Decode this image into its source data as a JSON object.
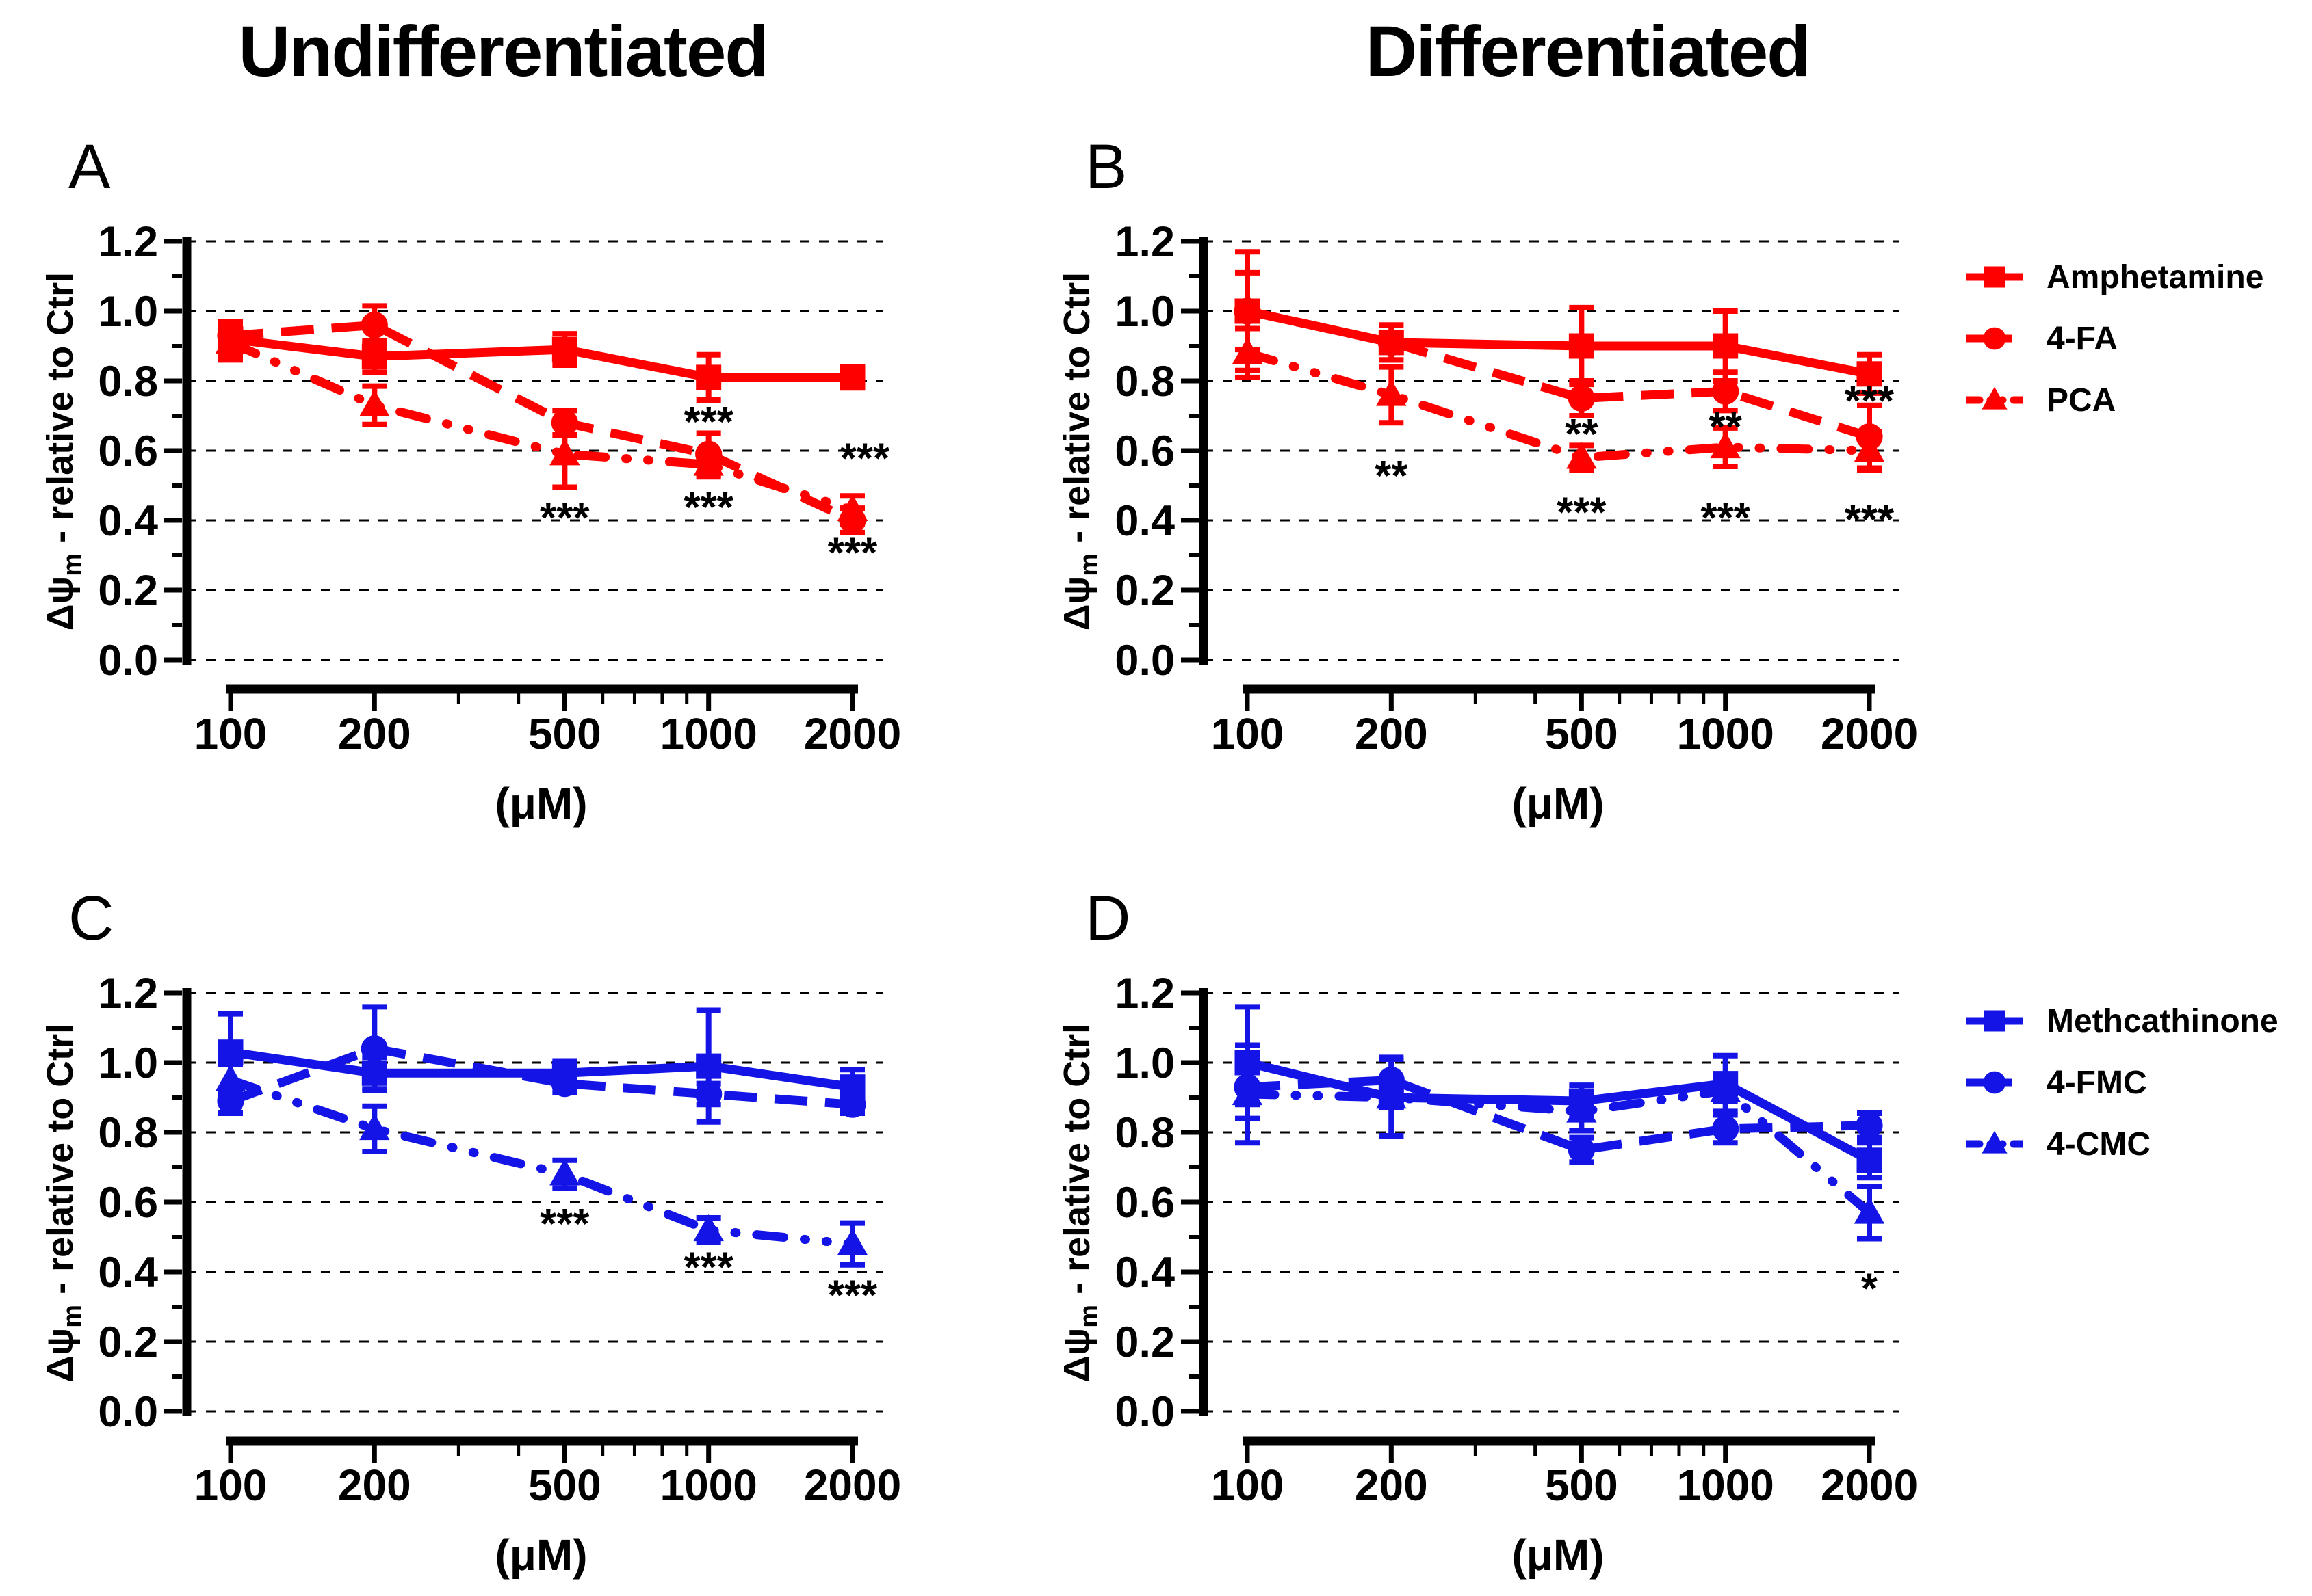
{
  "figure": {
    "column_titles": [
      "Undifferentiated",
      "Differentiated"
    ],
    "ylabel": {
      "prefix": "Δψ",
      "sub": "m",
      "suffix": " - relative to Ctrl"
    },
    "xlabel": "(μM)",
    "x_ticks": [
      "100",
      "200",
      "500",
      "1000",
      "2000"
    ],
    "x_minor_ticks": [
      300,
      400,
      600,
      700,
      800,
      900
    ],
    "y_tick_labels": [
      "0.0",
      "0.2",
      "0.4",
      "0.6",
      "0.8",
      "1.0",
      "1.2"
    ],
    "ylim": [
      0,
      1.2
    ],
    "xscale": "log",
    "grid": "dashed-horizontal",
    "colors": {
      "red": "#FF0000",
      "blue": "#1414E6",
      "axis": "#000000",
      "background": "#FFFFFF"
    }
  },
  "chart_data": [
    {
      "panel": "A",
      "type": "line",
      "column": "Undifferentiated",
      "color": "#FF0000",
      "x": [
        100,
        200,
        500,
        1000,
        2000
      ],
      "xscale": "log",
      "ylim": [
        0,
        1.2
      ],
      "ylabel": "Δψm - relative to Ctrl",
      "xlabel": "(μM)",
      "series": [
        {
          "name": "Amphetamine",
          "marker": "square",
          "linestyle": "solid",
          "values": [
            0.92,
            0.87,
            0.89,
            0.81,
            0.81
          ],
          "errors": [
            0.05,
            0.045,
            0.045,
            0.065,
            0.03
          ]
        },
        {
          "name": "4-FA",
          "marker": "circle",
          "linestyle": "dashed",
          "values": [
            0.93,
            0.96,
            0.68,
            0.59,
            0.4
          ],
          "errors": [
            0.04,
            0.055,
            0.035,
            0.06,
            0.035
          ]
        },
        {
          "name": "PCA",
          "marker": "triangle",
          "linestyle": "dashdotdot",
          "values": [
            0.91,
            0.73,
            0.59,
            0.56,
            0.43
          ],
          "errors": [
            0.05,
            0.055,
            0.095,
            0.035,
            0.04
          ]
        }
      ],
      "annotations": [
        {
          "x": 500,
          "y": 0.425,
          "text": "***"
        },
        {
          "x": 1000,
          "y": 0.7,
          "text": "***"
        },
        {
          "x": 1000,
          "y": 0.455,
          "text": "***"
        },
        {
          "x": 2000,
          "y": 0.595,
          "text": "***",
          "dx": 18
        },
        {
          "x": 2000,
          "y": 0.325,
          "text": "***"
        }
      ]
    },
    {
      "panel": "B",
      "type": "line",
      "column": "Differentiated",
      "color": "#FF0000",
      "x": [
        100,
        200,
        500,
        1000,
        2000
      ],
      "xscale": "log",
      "ylim": [
        0,
        1.2
      ],
      "ylabel": "Δψm - relative to Ctrl",
      "xlabel": "(μM)",
      "series": [
        {
          "name": "Amphetamine",
          "marker": "square",
          "linestyle": "solid",
          "values": [
            1.0,
            0.91,
            0.9,
            0.9,
            0.82
          ],
          "errors": [
            0.17,
            0.05,
            0.11,
            0.1,
            0.055
          ]
        },
        {
          "name": "4-FA",
          "marker": "circle",
          "linestyle": "dashed",
          "values": [
            1.0,
            0.91,
            0.75,
            0.77,
            0.64
          ],
          "errors": [
            0.11,
            0.05,
            0.05,
            0.055,
            0.09
          ]
        },
        {
          "name": "PCA",
          "marker": "triangle",
          "linestyle": "dashdotdot",
          "values": [
            0.88,
            0.76,
            0.58,
            0.61,
            0.6
          ],
          "errors": [
            0.07,
            0.08,
            0.035,
            0.055,
            0.055
          ]
        }
      ],
      "annotations": [
        {
          "x": 200,
          "y": 0.545,
          "text": "**"
        },
        {
          "x": 500,
          "y": 0.665,
          "text": "**"
        },
        {
          "x": 500,
          "y": 0.44,
          "text": "***"
        },
        {
          "x": 1000,
          "y": 0.685,
          "text": "**"
        },
        {
          "x": 1000,
          "y": 0.425,
          "text": "***"
        },
        {
          "x": 2000,
          "y": 0.76,
          "text": "***"
        },
        {
          "x": 2000,
          "y": 0.42,
          "text": "***"
        }
      ]
    },
    {
      "panel": "C",
      "type": "line",
      "column": "Undifferentiated",
      "color": "#1414E6",
      "x": [
        100,
        200,
        500,
        1000,
        2000
      ],
      "xscale": "log",
      "ylim": [
        0,
        1.2
      ],
      "ylabel": "Δψm - relative to Ctrl",
      "xlabel": "(μM)",
      "series": [
        {
          "name": "Methcathinone",
          "marker": "square",
          "linestyle": "solid",
          "values": [
            1.03,
            0.97,
            0.97,
            0.99,
            0.93
          ],
          "errors": [
            0.11,
            0.045,
            0.035,
            0.16,
            0.05
          ]
        },
        {
          "name": "4-FMC",
          "marker": "circle",
          "linestyle": "dashed",
          "values": [
            0.89,
            1.04,
            0.94,
            0.91,
            0.88
          ],
          "errors": [
            0.035,
            0.12,
            0.025,
            0.03,
            0.025
          ]
        },
        {
          "name": "4-CMC",
          "marker": "triangle",
          "linestyle": "dashdotdot",
          "values": [
            0.95,
            0.81,
            0.68,
            0.52,
            0.48
          ],
          "errors": [
            0.045,
            0.065,
            0.04,
            0.035,
            0.06
          ]
        }
      ],
      "annotations": [
        {
          "x": 500,
          "y": 0.555,
          "text": "***"
        },
        {
          "x": 1000,
          "y": 0.43,
          "text": "***"
        },
        {
          "x": 2000,
          "y": 0.35,
          "text": "***"
        }
      ]
    },
    {
      "panel": "D",
      "type": "line",
      "column": "Differentiated",
      "color": "#1414E6",
      "x": [
        100,
        200,
        500,
        1000,
        2000
      ],
      "xscale": "log",
      "ylim": [
        0,
        1.2
      ],
      "ylabel": "Δψm - relative to Ctrl",
      "xlabel": "(μM)",
      "series": [
        {
          "name": "Methcathinone",
          "marker": "square",
          "linestyle": "solid",
          "values": [
            1.0,
            0.9,
            0.89,
            0.94,
            0.72
          ],
          "errors": [
            0.16,
            0.11,
            0.045,
            0.08,
            0.05
          ]
        },
        {
          "name": "4-FMC",
          "marker": "circle",
          "linestyle": "dashed",
          "values": [
            0.93,
            0.95,
            0.75,
            0.81,
            0.82
          ],
          "errors": [
            0.05,
            0.065,
            0.035,
            0.04,
            0.035
          ]
        },
        {
          "name": "4-CMC",
          "marker": "triangle",
          "linestyle": "dashdotdot",
          "values": [
            0.91,
            0.9,
            0.86,
            0.92,
            0.57
          ],
          "errors": [
            0.14,
            0.11,
            0.055,
            0.03,
            0.075
          ]
        }
      ],
      "annotations": [
        {
          "x": 2000,
          "y": 0.37,
          "text": "*"
        }
      ]
    }
  ],
  "legends": [
    {
      "color": "#FF0000",
      "entries": [
        {
          "label": "Amphetamine",
          "marker": "square",
          "linestyle": "solid"
        },
        {
          "label": "4-FA",
          "marker": "circle",
          "linestyle": "dashed"
        },
        {
          "label": "PCA",
          "marker": "triangle",
          "linestyle": "dashdotdot"
        }
      ]
    },
    {
      "color": "#1414E6",
      "entries": [
        {
          "label": "Methcathinone",
          "marker": "square",
          "linestyle": "solid"
        },
        {
          "label": "4-FMC",
          "marker": "circle",
          "linestyle": "dashed"
        },
        {
          "label": "4-CMC",
          "marker": "triangle",
          "linestyle": "dashdotdot"
        }
      ]
    }
  ]
}
